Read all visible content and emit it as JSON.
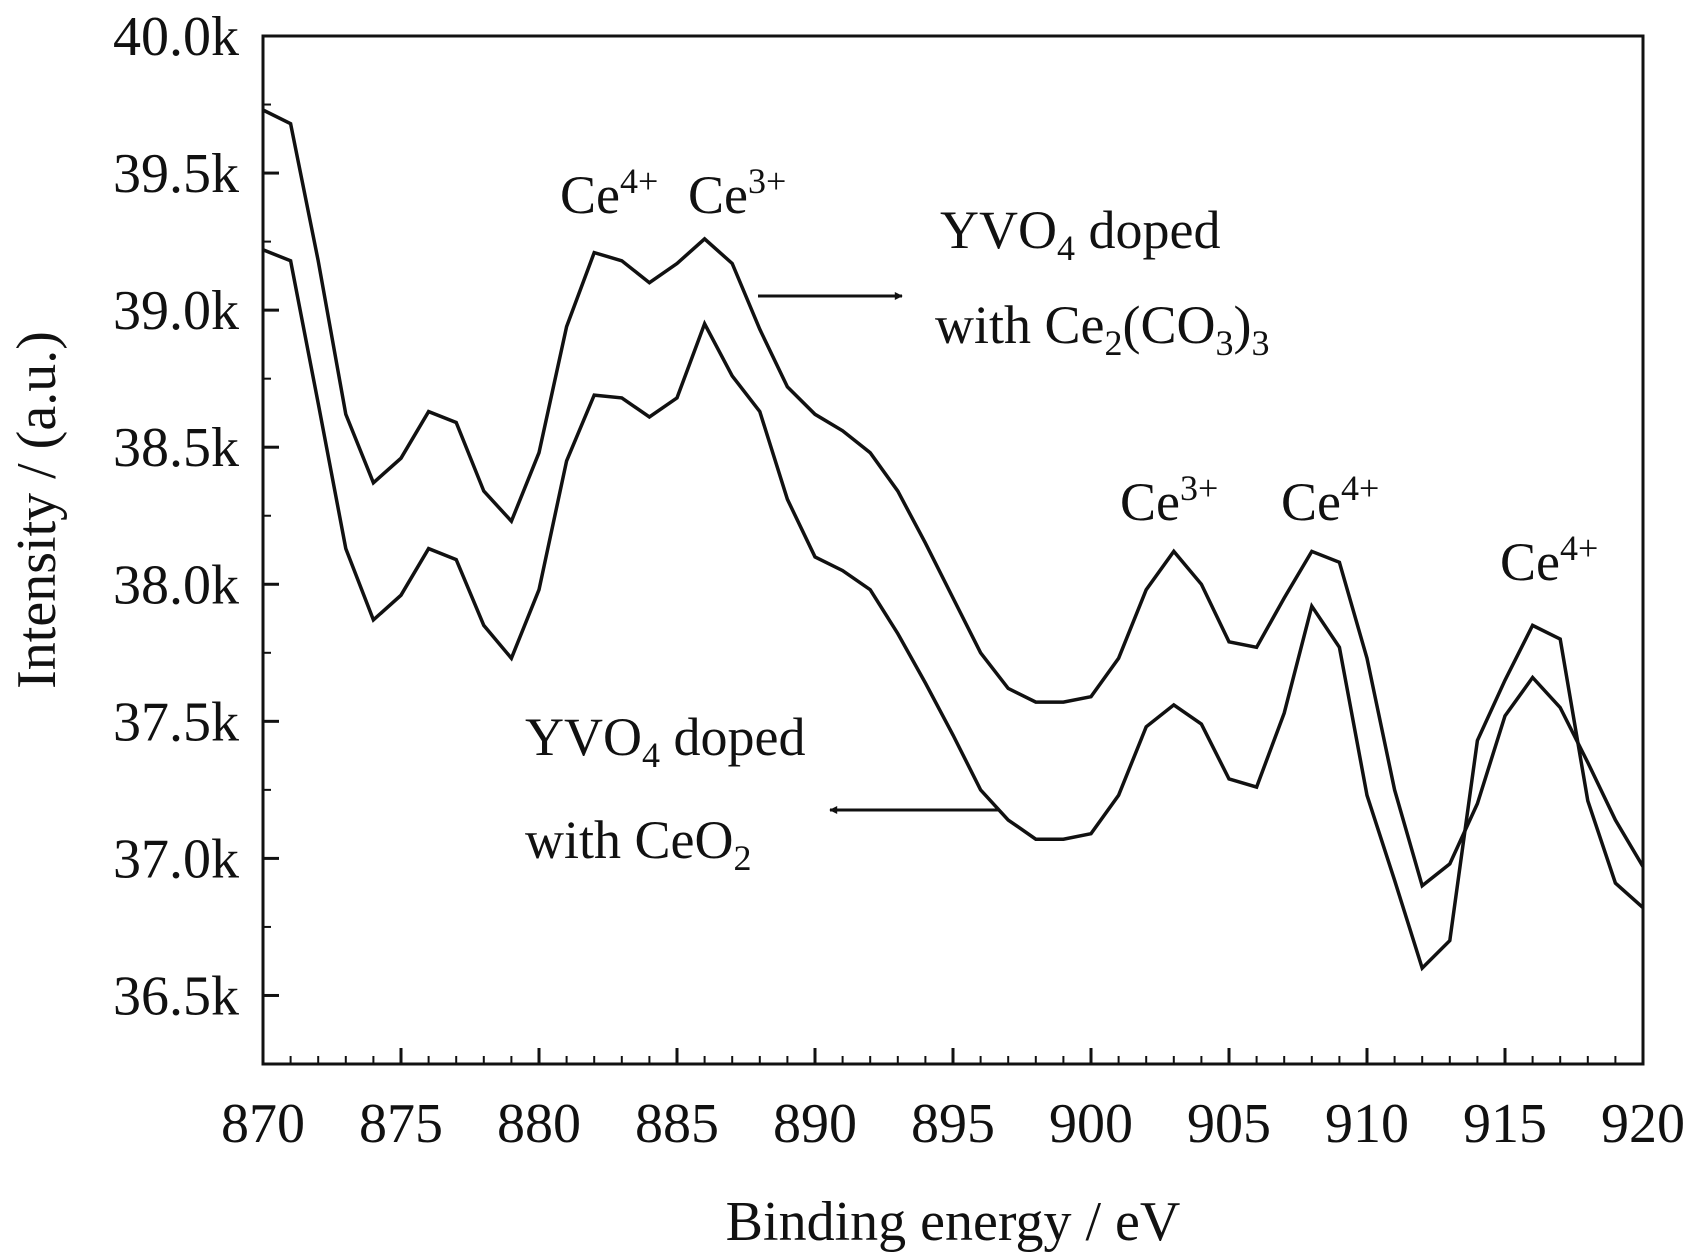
{
  "chart_data": {
    "type": "line",
    "xlabel": "Binding energy / eV",
    "ylabel": "Intensity / (a.u.)",
    "xlim": [
      870,
      920
    ],
    "ylim": [
      36250,
      40000
    ],
    "x_ticks": [
      870,
      875,
      880,
      885,
      890,
      895,
      900,
      905,
      910,
      915,
      920
    ],
    "x_tick_labels": [
      "870",
      "875",
      "880",
      "885",
      "890",
      "895",
      "900",
      "905",
      "910",
      "915",
      "920"
    ],
    "y_ticks": [
      36500,
      37000,
      37500,
      38000,
      38500,
      39000,
      39500,
      40000
    ],
    "y_tick_labels": [
      "36.5k",
      "37.0k",
      "37.5k",
      "38.0k",
      "38.5k",
      "39.0k",
      "39.5k",
      "40.0k"
    ],
    "grid": false,
    "legend": "none",
    "series": [
      {
        "name": "YVO4 doped with Ce2(CO3)3",
        "x": [
          870,
          871,
          872,
          873,
          874,
          875,
          876,
          877,
          878,
          879,
          880,
          881,
          882,
          883,
          884,
          885,
          886,
          887,
          888,
          889,
          890,
          891,
          892,
          893,
          894,
          895,
          896,
          897,
          898,
          899,
          900,
          901,
          902,
          903,
          904,
          905,
          906,
          907,
          908,
          909,
          910,
          911,
          912,
          913,
          914,
          915,
          916,
          917,
          918,
          919,
          920
        ],
        "values": [
          39730,
          39680,
          39180,
          38620,
          38370,
          38460,
          38630,
          38590,
          38340,
          38230,
          38480,
          38940,
          39210,
          39180,
          39100,
          39170,
          39260,
          39170,
          38930,
          38720,
          38620,
          38560,
          38480,
          38340,
          38150,
          37950,
          37750,
          37620,
          37570,
          37570,
          37590,
          37730,
          37980,
          38120,
          38000,
          37790,
          37770,
          37950,
          38120,
          38080,
          37730,
          37250,
          36900,
          36980,
          37200,
          37520,
          37660,
          37550,
          37350,
          37140,
          36970
        ]
      },
      {
        "name": "YVO4 doped with CeO2",
        "x": [
          870,
          871,
          872,
          873,
          874,
          875,
          876,
          877,
          878,
          879,
          880,
          881,
          882,
          883,
          884,
          885,
          886,
          887,
          888,
          889,
          890,
          891,
          892,
          893,
          894,
          895,
          896,
          897,
          898,
          899,
          900,
          901,
          902,
          903,
          904,
          905,
          906,
          907,
          908,
          909,
          910,
          911,
          912,
          913,
          914,
          915,
          916,
          917,
          918,
          919,
          920
        ],
        "values": [
          39220,
          39180,
          38660,
          38130,
          37870,
          37960,
          38130,
          38090,
          37850,
          37730,
          37980,
          38450,
          38690,
          38680,
          38610,
          38680,
          38950,
          38760,
          38630,
          38310,
          38100,
          38050,
          37980,
          37820,
          37640,
          37450,
          37250,
          37140,
          37070,
          37070,
          37090,
          37230,
          37480,
          37560,
          37490,
          37290,
          37260,
          37530,
          37920,
          37770,
          37230,
          36920,
          36600,
          36700,
          37430,
          37650,
          37850,
          37800,
          37210,
          36910,
          36820
        ]
      }
    ],
    "annotations": {
      "peak_a": {
        "base": "Ce",
        "sup": "4+"
      },
      "peak_b": {
        "base": "Ce",
        "sup": "3+"
      },
      "peak_c": {
        "base": "Ce",
        "sup": "3+"
      },
      "peak_d": {
        "base": "Ce",
        "sup": "4+"
      },
      "peak_e": {
        "base": "Ce",
        "sup": "4+"
      },
      "upper_label": {
        "line1_a": "YVO",
        "line1_sub": "4",
        "line1_b": " doped",
        "line2_a": "with Ce",
        "line2_sub1": "2",
        "line2_b": "(CO",
        "line2_sub2": "3",
        "line2_c": ")",
        "line2_sub3": "3"
      },
      "lower_label": {
        "line1_a": "YVO",
        "line1_sub": "4",
        "line1_b": " doped",
        "line2_a": "with CeO",
        "line2_sub": "2"
      }
    }
  }
}
